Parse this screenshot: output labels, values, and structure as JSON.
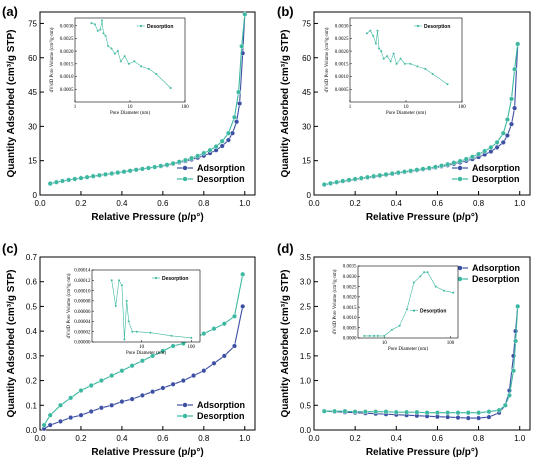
{
  "colors": {
    "adsorption": "#3c4fa3",
    "desorption": "#3cb8a0",
    "axis": "#000000"
  },
  "chart_data": [
    {
      "panel": "(a)",
      "type": "line",
      "xlabel": "Relative Pressure (p/p°)",
      "ylabel": "Quantity Adsorbed (cm³/g STP)",
      "xlim": [
        0,
        1.05
      ],
      "ylim": [
        0,
        80
      ],
      "xticks": [
        0.0,
        0.2,
        0.4,
        0.6,
        0.8,
        1.0
      ],
      "yticks": [
        0,
        15,
        30,
        45,
        60,
        75
      ],
      "xtick_labels": [
        "0.0",
        "0.2",
        "0.4",
        "0.6",
        "0.8",
        "1.0"
      ],
      "ytick_labels": [
        "0",
        "15",
        "30",
        "45",
        "60",
        "75"
      ],
      "legend": "bottom-right",
      "series": [
        {
          "name": "Adsorption",
          "x": [
            0.05,
            0.08,
            0.11,
            0.14,
            0.17,
            0.2,
            0.23,
            0.26,
            0.29,
            0.32,
            0.35,
            0.38,
            0.41,
            0.44,
            0.47,
            0.5,
            0.53,
            0.56,
            0.59,
            0.62,
            0.65,
            0.68,
            0.71,
            0.74,
            0.77,
            0.8,
            0.83,
            0.86,
            0.89,
            0.92,
            0.94,
            0.96,
            0.975,
            0.99,
            1.0
          ],
          "y": [
            5,
            5.6,
            6.1,
            6.6,
            7,
            7.4,
            7.8,
            8.2,
            8.6,
            9,
            9.4,
            9.8,
            10.2,
            10.6,
            11,
            11.4,
            11.8,
            12.2,
            12.6,
            13,
            13.6,
            14.2,
            14.8,
            15.5,
            16.3,
            17.2,
            18.3,
            19.6,
            21.4,
            24,
            27,
            32,
            40,
            62,
            79
          ]
        },
        {
          "name": "Desorption",
          "x": [
            1.0,
            0.985,
            0.97,
            0.95,
            0.92,
            0.89,
            0.86,
            0.83,
            0.8,
            0.77,
            0.74,
            0.71,
            0.68,
            0.65,
            0.62,
            0.59,
            0.56,
            0.53,
            0.5,
            0.47,
            0.44,
            0.41,
            0.38,
            0.35,
            0.32,
            0.29,
            0.26,
            0.23,
            0.2,
            0.17,
            0.14,
            0.11,
            0.08,
            0.05
          ],
          "y": [
            79,
            65,
            45,
            34,
            27,
            23.5,
            21.2,
            19.6,
            18.3,
            17.1,
            16.1,
            15.2,
            14.5,
            13.8,
            13.2,
            12.7,
            12.2,
            11.8,
            11.4,
            11,
            10.6,
            10.2,
            9.8,
            9.4,
            9,
            8.6,
            8.2,
            7.8,
            7.4,
            7,
            6.6,
            6.1,
            5.6,
            5
          ]
        }
      ],
      "inset": {
        "xlabel": "Pore Diameter (nm)",
        "ylabel": "dV/dD Pore Volume (cm³/g·nm)",
        "xscale": "log",
        "xlim": [
          1,
          100
        ],
        "ylim": [
          0,
          0.0033
        ],
        "xticks": [
          1,
          10,
          100
        ],
        "xtick_labels": [
          "1",
          "10",
          "100"
        ],
        "yticks": [
          0.0005,
          0.001,
          0.0015,
          0.002,
          0.0025,
          0.003
        ],
        "ytick_labels": [
          "0.0005",
          "0.0010",
          "0.0015",
          "0.0020",
          "0.0025",
          "0.0030"
        ],
        "legend": "top-right",
        "series": [
          {
            "name": "Desorption",
            "x": [
              2.0,
              2.3,
              2.6,
              2.9,
              3.1,
              3.3,
              3.6,
              4.0,
              4.6,
              5.3,
              6.0,
              6.8,
              8.0,
              9.5,
              12,
              16,
              22,
              30,
              55
            ],
            "y": [
              0.0031,
              0.00305,
              0.0028,
              0.00285,
              0.0032,
              0.0027,
              0.0026,
              0.0022,
              0.0021,
              0.0019,
              0.002,
              0.0016,
              0.0018,
              0.0015,
              0.0016,
              0.0014,
              0.0013,
              0.0011,
              0.00055
            ]
          }
        ]
      }
    },
    {
      "panel": "(b)",
      "type": "line",
      "xlabel": "Relative Pressure (p/p°)",
      "ylabel": "Quantity Adsorbed (cm³/g STP)",
      "xlim": [
        0,
        1.05
      ],
      "ylim": [
        0,
        80
      ],
      "xticks": [
        0.0,
        0.2,
        0.4,
        0.6,
        0.8,
        1.0
      ],
      "yticks": [
        0,
        15,
        30,
        45,
        60,
        75
      ],
      "xtick_labels": [
        "0.0",
        "0.2",
        "0.4",
        "0.6",
        "0.8",
        "1.0"
      ],
      "ytick_labels": [
        "0",
        "15",
        "30",
        "45",
        "60",
        "75"
      ],
      "legend": "bottom-right",
      "series": [
        {
          "name": "Adsorption",
          "x": [
            0.05,
            0.08,
            0.11,
            0.14,
            0.17,
            0.2,
            0.23,
            0.26,
            0.29,
            0.32,
            0.35,
            0.38,
            0.41,
            0.44,
            0.47,
            0.5,
            0.53,
            0.56,
            0.59,
            0.62,
            0.65,
            0.68,
            0.71,
            0.74,
            0.77,
            0.8,
            0.83,
            0.86,
            0.89,
            0.92,
            0.94,
            0.96,
            0.975,
            0.99
          ],
          "y": [
            4.5,
            5,
            5.5,
            6,
            6.4,
            6.8,
            7.2,
            7.6,
            8,
            8.4,
            8.8,
            9.2,
            9.6,
            10,
            10.4,
            10.8,
            11.2,
            11.6,
            12,
            12.5,
            13,
            13.6,
            14.2,
            14.9,
            15.7,
            16.6,
            17.7,
            19,
            20.8,
            23,
            26,
            31,
            38,
            66
          ]
        },
        {
          "name": "Desorption",
          "x": [
            0.99,
            0.975,
            0.96,
            0.94,
            0.92,
            0.89,
            0.86,
            0.83,
            0.8,
            0.77,
            0.74,
            0.71,
            0.68,
            0.65,
            0.62,
            0.59,
            0.56,
            0.53,
            0.5,
            0.47,
            0.44,
            0.41,
            0.38,
            0.35,
            0.32,
            0.29,
            0.26,
            0.23,
            0.2,
            0.17,
            0.14,
            0.11,
            0.08,
            0.05
          ],
          "y": [
            66,
            55,
            42,
            33,
            27,
            23,
            20.8,
            19.2,
            17.9,
            16.7,
            15.7,
            14.8,
            14.1,
            13.4,
            12.8,
            12.3,
            11.8,
            11.4,
            11,
            10.6,
            10.2,
            9.8,
            9.4,
            9,
            8.6,
            8.2,
            7.8,
            7.4,
            7,
            6.6,
            6.1,
            5.6,
            5.1,
            4.6
          ]
        }
      ],
      "inset": {
        "xlabel": "Pore Diameter (nm)",
        "ylabel": "dV/dD Pore Volume (cm³/g·nm)",
        "xscale": "log",
        "xlim": [
          1,
          100
        ],
        "ylim": [
          0,
          0.0033
        ],
        "xticks": [
          1,
          10,
          100
        ],
        "xtick_labels": [
          "1",
          "10",
          "100"
        ],
        "yticks": [
          0.0005,
          0.001,
          0.0015,
          0.002,
          0.0025,
          0.003
        ],
        "ytick_labels": [
          "0.0005",
          "0.0010",
          "0.0015",
          "0.0020",
          "0.0025",
          "0.0030"
        ],
        "legend": "top-right",
        "series": [
          {
            "name": "Desorption",
            "x": [
              2.0,
              2.3,
              2.6,
              2.9,
              3.1,
              3.3,
              3.6,
              4.0,
              4.6,
              5.3,
              6.0,
              6.8,
              8.0,
              9.5,
              12,
              16,
              22,
              30,
              55
            ],
            "y": [
              0.0027,
              0.0028,
              0.0026,
              0.0023,
              0.0028,
              0.0021,
              0.002,
              0.0017,
              0.0018,
              0.0016,
              0.0019,
              0.0015,
              0.0017,
              0.0015,
              0.0015,
              0.0014,
              0.0013,
              0.0011,
              0.0007
            ]
          }
        ]
      }
    },
    {
      "panel": "(c)",
      "type": "line",
      "xlabel": "Relative Pressure (p/p°)",
      "ylabel": "Quantity Adsorbed (cm³/g STP)",
      "xlim": [
        0,
        1.05
      ],
      "ylim": [
        0,
        0.7
      ],
      "xticks": [
        0.0,
        0.2,
        0.4,
        0.6,
        0.8,
        1.0
      ],
      "yticks": [
        0.0,
        0.1,
        0.2,
        0.3,
        0.4,
        0.5,
        0.6,
        0.7
      ],
      "xtick_labels": [
        "0.0",
        "0.2",
        "0.4",
        "0.6",
        "0.8",
        "1.0"
      ],
      "ytick_labels": [
        "0.0",
        "0.1",
        "0.2",
        "0.3",
        "0.4",
        "0.5",
        "0.6",
        "0.7"
      ],
      "legend": "bottom-right",
      "series": [
        {
          "name": "Adsorption",
          "x": [
            0.02,
            0.05,
            0.1,
            0.15,
            0.2,
            0.25,
            0.3,
            0.35,
            0.4,
            0.45,
            0.5,
            0.55,
            0.6,
            0.65,
            0.7,
            0.75,
            0.8,
            0.85,
            0.9,
            0.95,
            0.99
          ],
          "y": [
            0.005,
            0.02,
            0.035,
            0.05,
            0.06,
            0.075,
            0.09,
            0.1,
            0.115,
            0.125,
            0.14,
            0.155,
            0.17,
            0.185,
            0.2,
            0.22,
            0.24,
            0.27,
            0.3,
            0.34,
            0.5
          ]
        },
        {
          "name": "Desorption",
          "x": [
            0.99,
            0.95,
            0.9,
            0.85,
            0.8,
            0.75,
            0.7,
            0.65,
            0.6,
            0.55,
            0.5,
            0.45,
            0.4,
            0.35,
            0.3,
            0.25,
            0.2,
            0.15,
            0.1,
            0.05,
            0.02
          ],
          "y": [
            0.63,
            0.46,
            0.43,
            0.41,
            0.39,
            0.37,
            0.35,
            0.34,
            0.32,
            0.3,
            0.28,
            0.26,
            0.24,
            0.22,
            0.2,
            0.18,
            0.16,
            0.13,
            0.1,
            0.06,
            0.02
          ]
        }
      ],
      "inset": {
        "xlabel": "Pore Diameter (nm)",
        "ylabel": "dV/dD Pore Volume (cm³/g·nm)",
        "xscale": "log",
        "xlim": [
          1,
          150
        ],
        "ylim": [
          0,
          0.00014
        ],
        "xticks": [
          10,
          100
        ],
        "xtick_labels": [
          "10",
          "100"
        ],
        "yticks": [
          0,
          2e-05,
          4e-05,
          6e-05,
          8e-05,
          0.0001,
          0.00012,
          0.00014
        ],
        "ytick_labels": [
          "0.00000",
          "0.00002",
          "0.00004",
          "0.00006",
          "0.00008",
          "0.00010",
          "0.00012",
          "0.00014"
        ],
        "legend": "top-right",
        "series": [
          {
            "name": "Desorption",
            "x": [
              2.5,
              3.0,
              3.5,
              4.0,
              4.5,
              5.0,
              5.5,
              6.5,
              8.0,
              15,
              40,
              100
            ],
            "y": [
              0.00012,
              7e-05,
              0.00012,
              0.00011,
              5e-06,
              8e-05,
              4e-05,
              2e-05,
              2e-05,
              1.8e-05,
              1.2e-05,
              8e-06
            ]
          }
        ]
      }
    },
    {
      "panel": "(d)",
      "type": "line",
      "xlabel": "Relative Pressure (p/p°)",
      "ylabel": "Quantity Adsorbed (cm³/g STP)",
      "xlim": [
        0,
        1.05
      ],
      "ylim": [
        0,
        3.5
      ],
      "xticks": [
        0.0,
        0.2,
        0.4,
        0.6,
        0.8,
        1.0
      ],
      "yticks": [
        0.0,
        0.5,
        1.0,
        1.5,
        2.0,
        2.5,
        3.0,
        3.5
      ],
      "xtick_labels": [
        "0.0",
        "0.2",
        "0.4",
        "0.6",
        "0.8",
        "1.0"
      ],
      "ytick_labels": [
        "0.0",
        "0.5",
        "1.0",
        "1.5",
        "2.0",
        "2.5",
        "3.0",
        "3.5"
      ],
      "legend": "top-right",
      "series": [
        {
          "name": "Adsorption",
          "x": [
            0.05,
            0.1,
            0.15,
            0.2,
            0.25,
            0.3,
            0.35,
            0.4,
            0.45,
            0.5,
            0.55,
            0.6,
            0.65,
            0.7,
            0.75,
            0.8,
            0.85,
            0.9,
            0.93,
            0.95,
            0.97,
            0.98,
            0.99
          ],
          "y": [
            0.38,
            0.37,
            0.36,
            0.35,
            0.34,
            0.33,
            0.32,
            0.31,
            0.3,
            0.29,
            0.28,
            0.27,
            0.26,
            0.25,
            0.24,
            0.24,
            0.26,
            0.35,
            0.5,
            0.8,
            1.5,
            2.0,
            2.5
          ]
        },
        {
          "name": "Desorption",
          "x": [
            0.99,
            0.98,
            0.97,
            0.95,
            0.93,
            0.9,
            0.85,
            0.8,
            0.75,
            0.7,
            0.65,
            0.6,
            0.55,
            0.5,
            0.45,
            0.4,
            0.35,
            0.3,
            0.25,
            0.2,
            0.15,
            0.1,
            0.05
          ],
          "y": [
            2.5,
            1.8,
            1.2,
            0.7,
            0.5,
            0.4,
            0.37,
            0.35,
            0.35,
            0.35,
            0.35,
            0.35,
            0.35,
            0.36,
            0.36,
            0.36,
            0.37,
            0.37,
            0.37,
            0.37,
            0.38,
            0.38,
            0.38
          ]
        }
      ],
      "inset": {
        "xlabel": "Pore Diameter (nm)",
        "ylabel": "dV/dD Pore Volume (cm³/g·nm)",
        "xscale": "log",
        "xlim": [
          4,
          130
        ],
        "ylim": [
          0,
          0.0035
        ],
        "xticks": [
          10,
          100
        ],
        "xtick_labels": [
          "10",
          "100"
        ],
        "yticks": [
          0,
          0.0005,
          0.001,
          0.0015,
          0.002,
          0.0025,
          0.003,
          0.0035
        ],
        "ytick_labels": [
          "0.0000",
          "0.0005",
          "0.0010",
          "0.0015",
          "0.0020",
          "0.0025",
          "0.0030",
          "0.0035"
        ],
        "legend": "middle-right",
        "series": [
          {
            "name": "Desorption",
            "x": [
              5,
              6,
              7,
              8,
              10,
              13,
              17,
              22,
              28,
              35,
              40,
              45,
              60,
              80,
              110
            ],
            "y": [
              0.0001,
              0.0001,
              0.0001,
              0.0001,
              0.0001,
              0.0004,
              0.0006,
              0.0014,
              0.0027,
              0.003,
              0.0032,
              0.0032,
              0.0025,
              0.0023,
              0.0022
            ]
          }
        ]
      }
    }
  ]
}
